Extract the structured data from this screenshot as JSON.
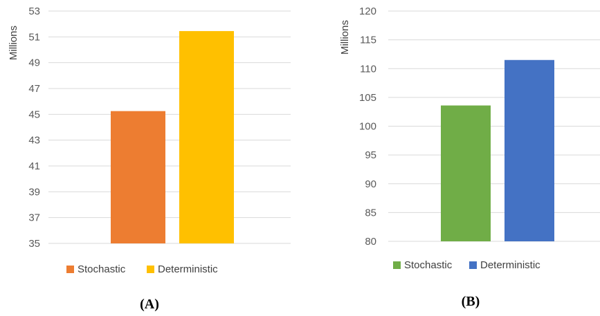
{
  "chart_data": [
    {
      "type": "bar",
      "panel_label": "(A)",
      "ylabel": "Millions",
      "ylim": [
        35,
        53
      ],
      "yticks": [
        35,
        37,
        39,
        41,
        43,
        45,
        47,
        49,
        51,
        53
      ],
      "grid": true,
      "legend_position": "bottom",
      "series": [
        {
          "name": "Stochastic",
          "value": 45.25,
          "color": "#ED7D31"
        },
        {
          "name": "Deterministic",
          "value": 51.45,
          "color": "#FFC000"
        }
      ]
    },
    {
      "type": "bar",
      "panel_label": "(B)",
      "ylabel": "Millions",
      "ylim": [
        80,
        120
      ],
      "yticks": [
        80,
        85,
        90,
        95,
        100,
        105,
        110,
        115,
        120
      ],
      "grid": true,
      "legend_position": "bottom",
      "series": [
        {
          "name": "Stochastic",
          "value": 103.6,
          "color": "#70AD47"
        },
        {
          "name": "Deterministic",
          "value": 111.5,
          "color": "#4472C4"
        }
      ]
    }
  ]
}
